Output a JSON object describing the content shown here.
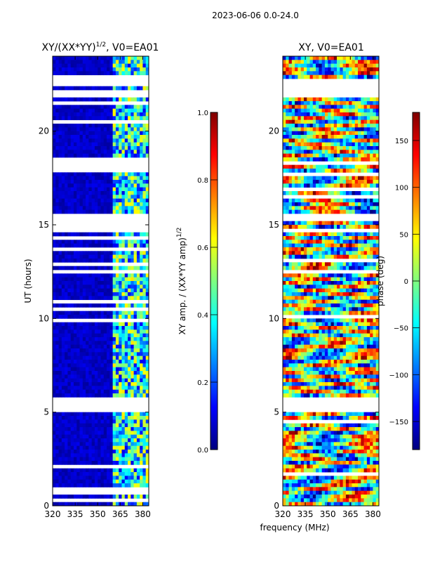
{
  "chart_data": {
    "type": "heatmap",
    "suptitle": "2023-06-06 0.0-24.0",
    "xlabel": "frequency (MHz)",
    "panels": [
      {
        "id": "amp",
        "title_main": "XY/(XX*YY)",
        "title_sup": "1/2",
        "title_suffix": ", V0=EA01",
        "ylabel": "UT (hours)",
        "xlim": [
          320,
          384
        ],
        "ylim": [
          0,
          24
        ],
        "xticks": [
          320,
          335,
          350,
          365,
          380
        ],
        "yticks": [
          0,
          5,
          10,
          15,
          20
        ],
        "colorbar": {
          "label_main": "XY amp. / (XX*YY amp)",
          "label_sup": "1/2",
          "range": [
            0.0,
            1.0
          ],
          "ticks": [
            "0.0",
            "0.2",
            "0.4",
            "0.6",
            "0.8",
            "1.0"
          ],
          "tick_values": [
            0.0,
            0.2,
            0.4,
            0.6,
            0.8,
            1.0
          ]
        }
      },
      {
        "id": "phase",
        "title_main": "XY, V0=EA01",
        "title_sup": "",
        "title_suffix": "",
        "ylabel": "",
        "xlim": [
          320,
          384
        ],
        "ylim": [
          0,
          24
        ],
        "xticks": [
          320,
          335,
          350,
          365,
          380
        ],
        "yticks": [
          0,
          5,
          10,
          15,
          20
        ],
        "colorbar": {
          "label_main": "phase (deg)",
          "label_sup": "",
          "range": [
            -180,
            180
          ],
          "ticks": [
            "150",
            "100",
            "50",
            "0",
            "−50",
            "−100",
            "−150"
          ],
          "tick_values": [
            150,
            100,
            50,
            0,
            -50,
            -100,
            -150
          ]
        }
      }
    ],
    "flagged_time_ranges_hours": [
      [
        4.9,
        5.7
      ],
      [
        21.8,
        22.1
      ],
      [
        15.3,
        15.6
      ],
      [
        22.5,
        22.7
      ]
    ],
    "colormap": "jet"
  }
}
